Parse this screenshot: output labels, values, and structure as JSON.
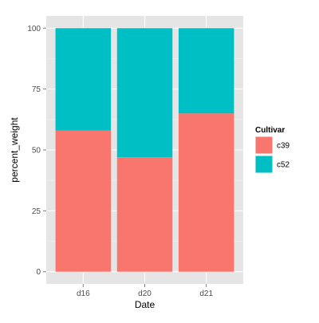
{
  "chart_data": {
    "type": "bar",
    "stacked": true,
    "categories": [
      "d16",
      "d20",
      "d21"
    ],
    "series": [
      {
        "name": "c39",
        "color": "#F8766D",
        "values": [
          58,
          47,
          65
        ]
      },
      {
        "name": "c52",
        "color": "#00BFC4",
        "values": [
          42,
          53,
          35
        ]
      }
    ],
    "xlabel": "Date",
    "ylabel": "percent_weight",
    "ylim": [
      0,
      100
    ],
    "yticks": [
      0,
      25,
      50,
      75,
      100
    ],
    "grid": true,
    "legend": {
      "title": "Cultivar",
      "placement": "right"
    },
    "colors": {
      "panel_background": "#E5E5E5",
      "grid_major": "#FFFFFF",
      "grid_minor": "#F2F2F2",
      "tick_text": "#4D4D4D",
      "axis_title": "#000000"
    }
  }
}
